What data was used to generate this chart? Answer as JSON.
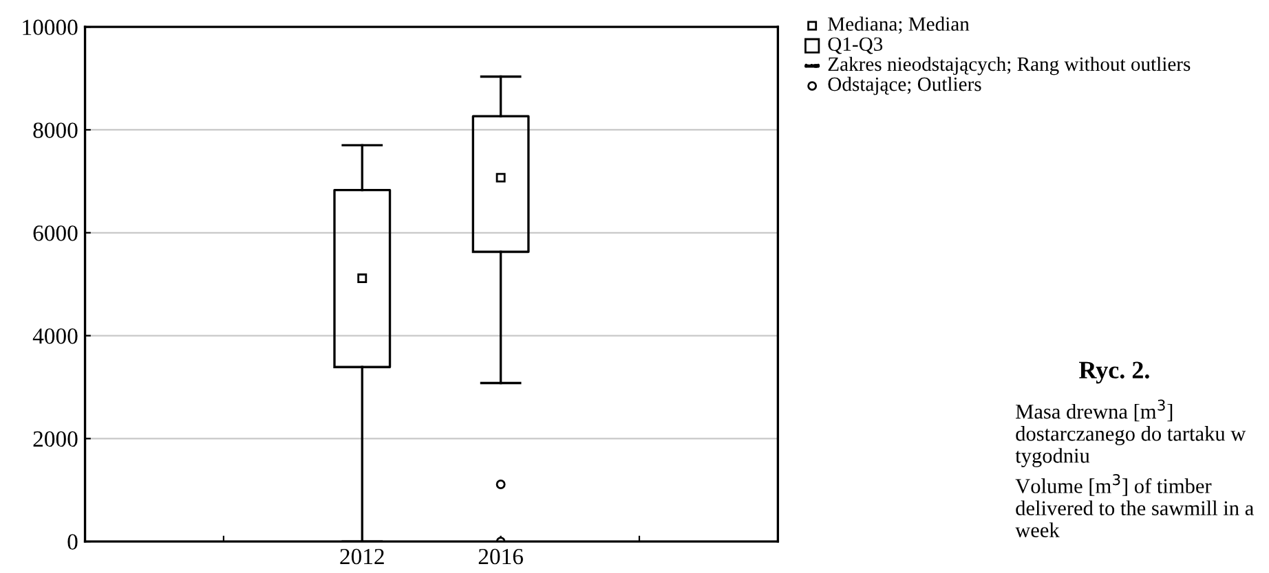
{
  "chart_data": {
    "type": "box",
    "categories": [
      null,
      "2012",
      "2016",
      null
    ],
    "boxes": [
      null,
      {
        "low": 0,
        "q1": 3390,
        "median": 5115,
        "q3": 6830,
        "high": 7700
      },
      {
        "low": 3080,
        "q1": 5630,
        "median": 7070,
        "q3": 8265,
        "high": 9035,
        "outliers": [
          1110,
          0
        ]
      },
      null
    ],
    "ylim": [
      0,
      10000
    ],
    "yticks": [
      0,
      2000,
      4000,
      6000,
      8000,
      10000
    ],
    "grid": "y",
    "annotations": [
      "Mediana; Median",
      "Q1-Q3",
      "Zakres nieodstających; Rang without outliers",
      "Odstające; Outliers",
      "Ryc. 2.",
      "Masa drewna [m$^{3}$] dostarczanego do tartaku w tygodniu",
      "Volume [m$^{3}$] of timber delivered to the sawmill in a week"
    ]
  }
}
